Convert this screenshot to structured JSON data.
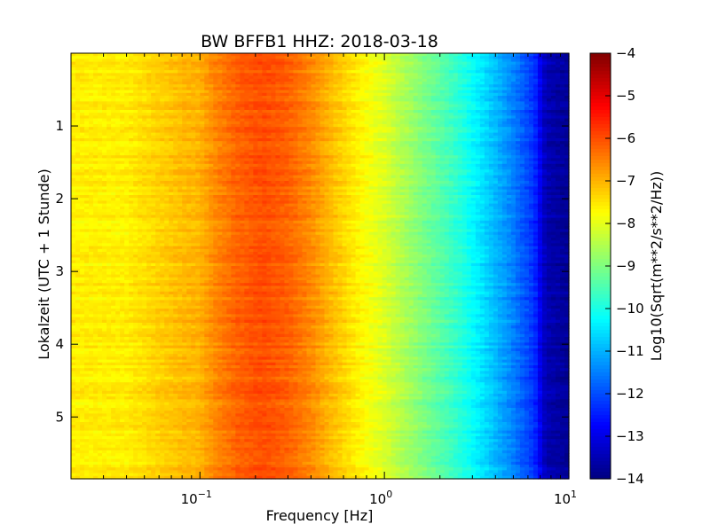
{
  "chart_data": {
    "type": "heatmap",
    "title": "BW BFFB1 HHZ: 2018-03-18",
    "xlabel": "Frequency [Hz]",
    "ylabel": "Lokalzeit (UTC + 1 Stunde)",
    "colorbar_label": "Log10(Sqrt(m**2/s**2/Hz))",
    "x_scale": "log",
    "xlim": [
      0.02,
      10
    ],
    "ylim": [
      5.85,
      0
    ],
    "y_ticks": [
      1,
      2,
      3,
      4,
      5
    ],
    "x_ticks": [
      {
        "value": 0.1,
        "base": "10",
        "exp": "−1"
      },
      {
        "value": 1,
        "base": "10",
        "exp": "0"
      },
      {
        "value": 10,
        "base": "10",
        "exp": "1"
      }
    ],
    "color_range": [
      -14,
      -4
    ],
    "colorbar_ticks": [
      -4,
      -5,
      -6,
      -7,
      -8,
      -9,
      -10,
      -11,
      -12,
      -13,
      -14
    ],
    "colormap": "jet",
    "grid": false,
    "rows": 150,
    "columns": 112,
    "x_profile": [
      {
        "f": 0.02,
        "v": -7.6
      },
      {
        "f": 0.04,
        "v": -7.6
      },
      {
        "f": 0.06,
        "v": -7.3
      },
      {
        "f": 0.08,
        "v": -7.1
      },
      {
        "f": 0.1,
        "v": -7.0
      },
      {
        "f": 0.12,
        "v": -6.6
      },
      {
        "f": 0.16,
        "v": -6.2
      },
      {
        "f": 0.22,
        "v": -6.0
      },
      {
        "f": 0.3,
        "v": -6.2
      },
      {
        "f": 0.4,
        "v": -6.6
      },
      {
        "f": 0.55,
        "v": -7.2
      },
      {
        "f": 0.75,
        "v": -7.7
      },
      {
        "f": 1.0,
        "v": -8.1
      },
      {
        "f": 1.3,
        "v": -8.6
      },
      {
        "f": 1.8,
        "v": -9.2
      },
      {
        "f": 2.5,
        "v": -9.8
      },
      {
        "f": 3.5,
        "v": -10.6
      },
      {
        "f": 5.0,
        "v": -11.5
      },
      {
        "f": 6.5,
        "v": -12.3
      },
      {
        "f": 7.5,
        "v": -13.5
      },
      {
        "f": 10,
        "v": -13.8
      }
    ]
  }
}
